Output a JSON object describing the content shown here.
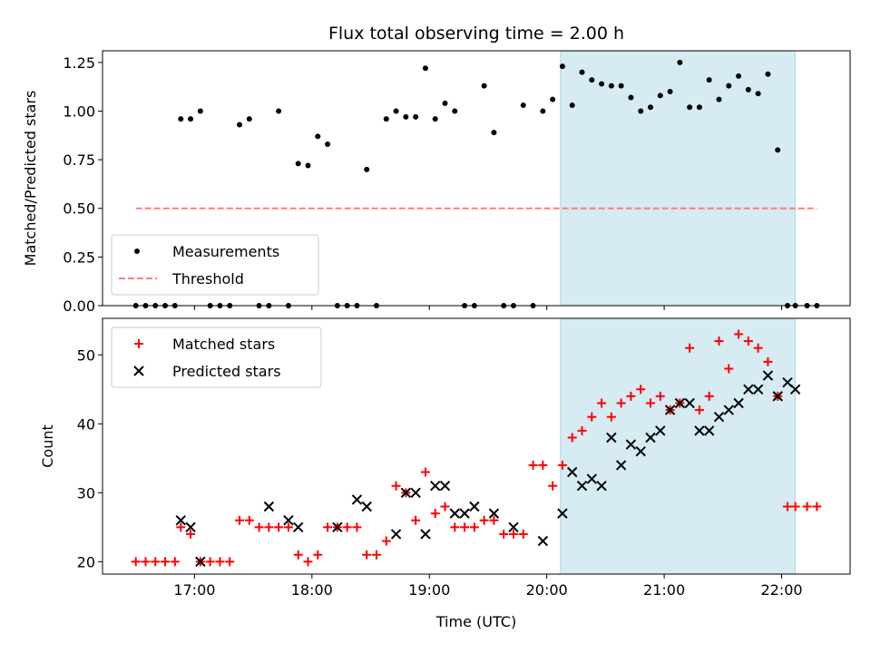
{
  "chart_data": [
    {
      "type": "scatter",
      "title": "Flux total observing time = 2.00 h",
      "xlabel": "",
      "ylabel": "Matched/Predicted stars",
      "xlim": [
        "16:13",
        "22:35"
      ],
      "ylim": [
        0,
        1.31
      ],
      "yticks": [
        "0.00",
        "0.25",
        "0.50",
        "0.75",
        "1.00",
        "1.25"
      ],
      "xticks": [
        "17:00",
        "18:00",
        "19:00",
        "20:00",
        "21:00",
        "22:00"
      ],
      "legend_position": "lower-left",
      "highlight_span": [
        "20:07",
        "22:07"
      ],
      "series": [
        {
          "name": "Measurements",
          "color": "#000000",
          "marker": "dot",
          "x": [
            "16:30",
            "16:35",
            "16:40",
            "16:45",
            "16:50",
            "16:53",
            "16:58",
            "17:03",
            "17:08",
            "17:13",
            "17:18",
            "17:23",
            "17:28",
            "17:33",
            "17:38",
            "17:43",
            "17:48",
            "17:53",
            "17:58",
            "18:03",
            "18:08",
            "18:13",
            "18:18",
            "18:23",
            "18:28",
            "18:33",
            "18:38",
            "18:43",
            "18:48",
            "18:53",
            "18:58",
            "19:03",
            "19:08",
            "19:13",
            "19:18",
            "19:23",
            "19:28",
            "19:33",
            "19:38",
            "19:43",
            "19:48",
            "19:53",
            "19:58",
            "20:03",
            "20:08",
            "20:13",
            "20:18",
            "20:23",
            "20:28",
            "20:33",
            "20:38",
            "20:43",
            "20:48",
            "20:53",
            "20:58",
            "21:03",
            "21:08",
            "21:13",
            "21:18",
            "21:23",
            "21:28",
            "21:33",
            "21:38",
            "21:43",
            "21:48",
            "21:53",
            "21:58",
            "22:03",
            "22:07",
            "22:13",
            "22:18"
          ],
          "y": [
            0,
            0,
            0,
            0,
            0,
            0.96,
            0.96,
            1.0,
            0,
            0,
            0,
            0.93,
            0.96,
            0,
            0,
            1.0,
            0,
            0.73,
            0.72,
            0.87,
            0.83,
            0,
            0,
            0,
            0.7,
            0,
            0.96,
            1.0,
            0.97,
            0.97,
            1.22,
            0.96,
            1.04,
            1.0,
            0,
            0,
            1.13,
            0.89,
            0,
            0,
            1.03,
            0,
            1.0,
            1.06,
            1.23,
            1.03,
            1.2,
            1.16,
            1.14,
            1.13,
            1.13,
            1.07,
            1.0,
            1.02,
            1.08,
            1.1,
            1.25,
            1.02,
            1.02,
            1.16,
            1.06,
            1.13,
            1.18,
            1.11,
            1.09,
            1.19,
            0.8,
            0,
            0,
            0,
            0
          ]
        },
        {
          "name": "Threshold",
          "color": "#ff7f7f",
          "style": "dashed",
          "x": [
            "16:30",
            "22:18"
          ],
          "y": [
            0.5,
            0.5
          ]
        }
      ]
    },
    {
      "type": "scatter",
      "title": "",
      "xlabel": "Time (UTC)",
      "ylabel": "Count",
      "xlim": [
        "16:13",
        "22:35"
      ],
      "ylim": [
        18.2,
        55.3
      ],
      "yticks": [
        "20",
        "30",
        "40",
        "50"
      ],
      "xticks": [
        "17:00",
        "18:00",
        "19:00",
        "20:00",
        "21:00",
        "22:00"
      ],
      "legend_position": "upper-left",
      "highlight_span": [
        "20:07",
        "22:07"
      ],
      "series": [
        {
          "name": "Matched stars",
          "color": "#ff0000",
          "marker": "plus",
          "x": [
            "16:30",
            "16:35",
            "16:40",
            "16:45",
            "16:50",
            "16:53",
            "16:58",
            "17:03",
            "17:08",
            "17:13",
            "17:18",
            "17:23",
            "17:28",
            "17:33",
            "17:38",
            "17:43",
            "17:48",
            "17:53",
            "17:58",
            "18:03",
            "18:08",
            "18:13",
            "18:18",
            "18:23",
            "18:28",
            "18:33",
            "18:38",
            "18:43",
            "18:48",
            "18:53",
            "18:58",
            "19:03",
            "19:08",
            "19:13",
            "19:18",
            "19:23",
            "19:28",
            "19:33",
            "19:38",
            "19:43",
            "19:48",
            "19:53",
            "19:58",
            "20:03",
            "20:08",
            "20:13",
            "20:18",
            "20:23",
            "20:28",
            "20:33",
            "20:38",
            "20:43",
            "20:48",
            "20:53",
            "20:58",
            "21:03",
            "21:08",
            "21:13",
            "21:18",
            "21:23",
            "21:28",
            "21:33",
            "21:38",
            "21:43",
            "21:48",
            "21:53",
            "21:58",
            "22:03",
            "22:07",
            "22:13",
            "22:18"
          ],
          "y": [
            20,
            20,
            20,
            20,
            20,
            25,
            24,
            20,
            20,
            20,
            20,
            26,
            26,
            25,
            25,
            25,
            25,
            21,
            20,
            21,
            25,
            25,
            25,
            25,
            21,
            21,
            23,
            31,
            30,
            26,
            33,
            27,
            28,
            25,
            25,
            25,
            26,
            26,
            24,
            24,
            24,
            34,
            34,
            31,
            34,
            38,
            39,
            41,
            43,
            41,
            43,
            44,
            45,
            43,
            44,
            42,
            43,
            51,
            42,
            44,
            52,
            48,
            53,
            52,
            51,
            49,
            44,
            28,
            28,
            28,
            28
          ]
        },
        {
          "name": "Predicted stars",
          "color": "#000000",
          "marker": "x",
          "x": [
            "16:53",
            "16:58",
            "17:03",
            "17:38",
            "17:48",
            "17:53",
            "18:13",
            "18:23",
            "18:28",
            "18:43",
            "18:48",
            "18:53",
            "18:58",
            "19:03",
            "19:08",
            "19:13",
            "19:18",
            "19:23",
            "19:33",
            "19:43",
            "19:58",
            "20:08",
            "20:13",
            "20:18",
            "20:23",
            "20:28",
            "20:33",
            "20:38",
            "20:43",
            "20:48",
            "20:53",
            "20:58",
            "21:03",
            "21:08",
            "21:13",
            "21:18",
            "21:23",
            "21:28",
            "21:33",
            "21:38",
            "21:43",
            "21:48",
            "21:53",
            "21:58",
            "22:03",
            "22:07"
          ],
          "y": [
            26,
            25,
            20,
            28,
            26,
            25,
            25,
            29,
            28,
            24,
            30,
            30,
            24,
            31,
            31,
            27,
            27,
            28,
            27,
            25,
            23,
            27,
            33,
            31,
            32,
            31,
            38,
            34,
            37,
            36,
            38,
            39,
            42,
            43,
            43,
            39,
            39,
            41,
            42,
            43,
            45,
            45,
            47,
            44,
            46,
            45
          ]
        }
      ]
    }
  ]
}
